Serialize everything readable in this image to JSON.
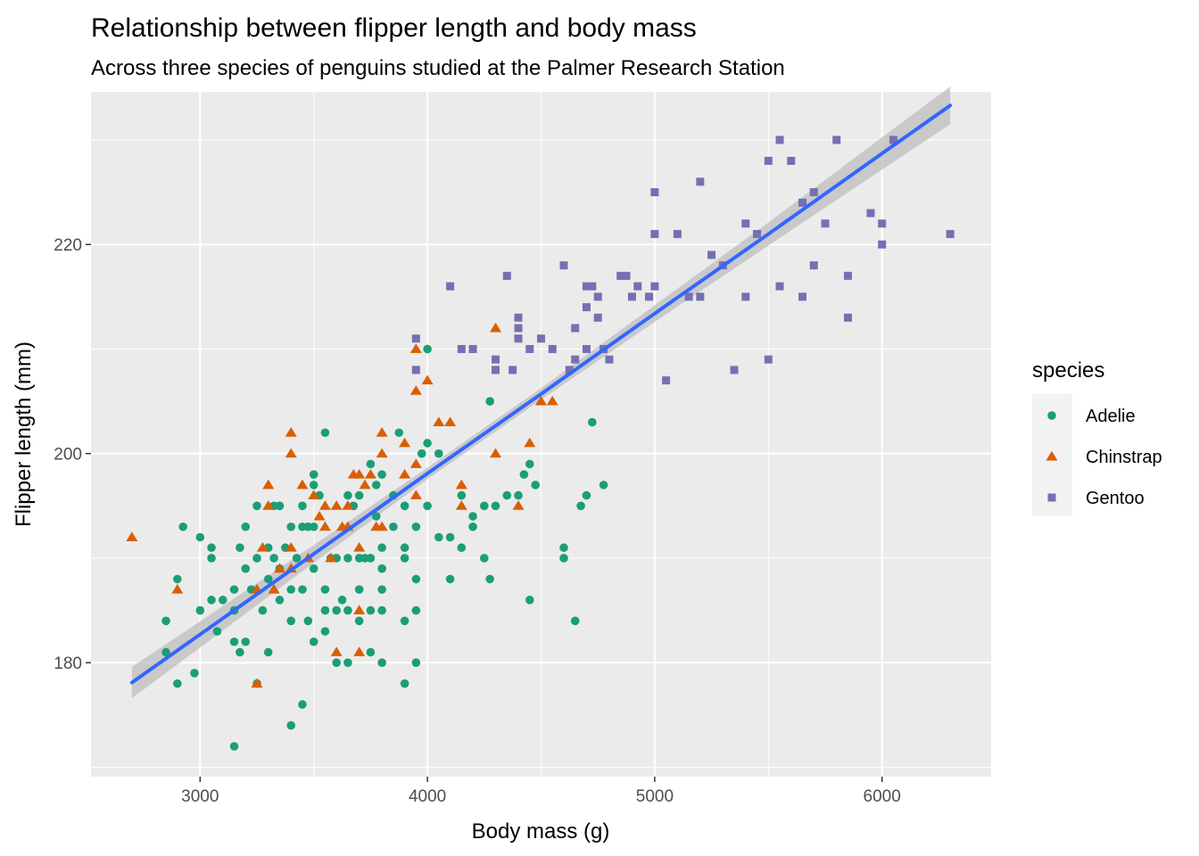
{
  "chart_data": {
    "type": "scatter",
    "title": "Relationship between flipper length and body mass",
    "subtitle": "Across three species of penguins studied at the Palmer Research Station",
    "xlabel": "Body mass (g)",
    "ylabel": "Flipper length (mm)",
    "xlim": [
      2520,
      6480
    ],
    "ylim": [
      169.1,
      234.6
    ],
    "x_ticks": [
      3000,
      4000,
      5000,
      6000
    ],
    "x_tick_labels": [
      "3000",
      "4000",
      "5000",
      "6000"
    ],
    "y_ticks": [
      180,
      200,
      220
    ],
    "y_tick_labels": [
      "180",
      "200",
      "220"
    ],
    "grid": true,
    "legend": {
      "title": "species",
      "position": "right",
      "entries": [
        {
          "label": "Adelie",
          "shape": "circle",
          "color": "#1b9e77"
        },
        {
          "label": "Chinstrap",
          "shape": "triangle",
          "color": "#d95f02"
        },
        {
          "label": "Gentoo",
          "shape": "square",
          "color": "#7570b3"
        }
      ]
    },
    "colors": {
      "panel": "#ebebeb",
      "grid": "#ffffff",
      "trend": "#3366ff",
      "ribbon": "#bdbdbd"
    },
    "trend_line": {
      "method": "lm",
      "x": [
        2700,
        3000,
        3500,
        4000,
        4500,
        5000,
        5500,
        6000,
        6300
      ],
      "y": [
        178.1,
        182.7,
        190.4,
        198.1,
        205.7,
        213.4,
        221.0,
        228.7,
        233.3
      ],
      "ci_half_width": [
        1.5,
        1.25,
        0.85,
        0.55,
        0.55,
        0.8,
        1.1,
        1.55,
        1.8
      ]
    },
    "series": [
      {
        "name": "Adelie",
        "points": [
          [
            2850,
            184
          ],
          [
            2850,
            181
          ],
          [
            2900,
            188
          ],
          [
            2900,
            178
          ],
          [
            2925,
            193
          ],
          [
            2975,
            179
          ],
          [
            3000,
            192
          ],
          [
            3000,
            185
          ],
          [
            3050,
            191
          ],
          [
            3050,
            190
          ],
          [
            3050,
            186
          ],
          [
            3075,
            183
          ],
          [
            3100,
            186
          ],
          [
            3150,
            187
          ],
          [
            3150,
            185
          ],
          [
            3150,
            182
          ],
          [
            3150,
            172
          ],
          [
            3175,
            191
          ],
          [
            3175,
            181
          ],
          [
            3200,
            193
          ],
          [
            3200,
            189
          ],
          [
            3200,
            182
          ],
          [
            3225,
            187
          ],
          [
            3250,
            195
          ],
          [
            3250,
            190
          ],
          [
            3250,
            178
          ],
          [
            3275,
            185
          ],
          [
            3300,
            191
          ],
          [
            3300,
            188
          ],
          [
            3300,
            181
          ],
          [
            3325,
            190
          ],
          [
            3325,
            195
          ],
          [
            3350,
            195
          ],
          [
            3350,
            189
          ],
          [
            3350,
            186
          ],
          [
            3375,
            191
          ],
          [
            3400,
            193
          ],
          [
            3400,
            187
          ],
          [
            3400,
            184
          ],
          [
            3400,
            174
          ],
          [
            3425,
            190
          ],
          [
            3450,
            195
          ],
          [
            3450,
            193
          ],
          [
            3450,
            187
          ],
          [
            3450,
            176
          ],
          [
            3475,
            193
          ],
          [
            3475,
            184
          ],
          [
            3500,
            198
          ],
          [
            3500,
            197
          ],
          [
            3500,
            193
          ],
          [
            3500,
            189
          ],
          [
            3500,
            182
          ],
          [
            3525,
            196
          ],
          [
            3550,
            202
          ],
          [
            3550,
            187
          ],
          [
            3550,
            185
          ],
          [
            3550,
            183
          ],
          [
            3575,
            190
          ],
          [
            3600,
            190
          ],
          [
            3600,
            185
          ],
          [
            3600,
            180
          ],
          [
            3625,
            186
          ],
          [
            3650,
            196
          ],
          [
            3650,
            190
          ],
          [
            3650,
            185
          ],
          [
            3650,
            180
          ],
          [
            3675,
            195
          ],
          [
            3700,
            196
          ],
          [
            3700,
            190
          ],
          [
            3700,
            187
          ],
          [
            3700,
            184
          ],
          [
            3725,
            190
          ],
          [
            3750,
            199
          ],
          [
            3750,
            190
          ],
          [
            3750,
            185
          ],
          [
            3750,
            181
          ],
          [
            3775,
            197
          ],
          [
            3775,
            194
          ],
          [
            3800,
            198
          ],
          [
            3800,
            191
          ],
          [
            3800,
            189
          ],
          [
            3800,
            187
          ],
          [
            3800,
            185
          ],
          [
            3800,
            180
          ],
          [
            3850,
            196
          ],
          [
            3850,
            193
          ],
          [
            3875,
            202
          ],
          [
            3900,
            195
          ],
          [
            3900,
            191
          ],
          [
            3900,
            190
          ],
          [
            3900,
            184
          ],
          [
            3900,
            178
          ],
          [
            3950,
            193
          ],
          [
            3950,
            188
          ],
          [
            3950,
            185
          ],
          [
            3950,
            180
          ],
          [
            3975,
            200
          ],
          [
            4000,
            210
          ],
          [
            4000,
            201
          ],
          [
            4000,
            195
          ],
          [
            4050,
            200
          ],
          [
            4050,
            192
          ],
          [
            4100,
            188
          ],
          [
            4100,
            192
          ],
          [
            4150,
            196
          ],
          [
            4150,
            191
          ],
          [
            4200,
            194
          ],
          [
            4200,
            193
          ],
          [
            4250,
            195
          ],
          [
            4250,
            190
          ],
          [
            4275,
            205
          ],
          [
            4275,
            188
          ],
          [
            4300,
            195
          ],
          [
            4350,
            196
          ],
          [
            4400,
            196
          ],
          [
            4425,
            198
          ],
          [
            4450,
            199
          ],
          [
            4450,
            186
          ],
          [
            4475,
            197
          ],
          [
            4600,
            191
          ],
          [
            4600,
            190
          ],
          [
            4650,
            184
          ],
          [
            4675,
            195
          ],
          [
            4700,
            196
          ],
          [
            4725,
            203
          ],
          [
            4775,
            197
          ]
        ]
      },
      {
        "name": "Chinstrap",
        "points": [
          [
            2700,
            192
          ],
          [
            2900,
            187
          ],
          [
            3250,
            178
          ],
          [
            3250,
            187
          ],
          [
            3275,
            191
          ],
          [
            3300,
            197
          ],
          [
            3300,
            195
          ],
          [
            3325,
            187
          ],
          [
            3350,
            189
          ],
          [
            3400,
            202
          ],
          [
            3400,
            200
          ],
          [
            3400,
            191
          ],
          [
            3400,
            189
          ],
          [
            3450,
            197
          ],
          [
            3475,
            190
          ],
          [
            3500,
            196
          ],
          [
            3525,
            194
          ],
          [
            3550,
            195
          ],
          [
            3550,
            193
          ],
          [
            3575,
            190
          ],
          [
            3600,
            195
          ],
          [
            3600,
            181
          ],
          [
            3625,
            193
          ],
          [
            3650,
            195
          ],
          [
            3650,
            193
          ],
          [
            3675,
            198
          ],
          [
            3700,
            198
          ],
          [
            3700,
            191
          ],
          [
            3700,
            181
          ],
          [
            3700,
            185
          ],
          [
            3725,
            197
          ],
          [
            3750,
            198
          ],
          [
            3775,
            193
          ],
          [
            3800,
            202
          ],
          [
            3800,
            200
          ],
          [
            3800,
            193
          ],
          [
            3900,
            198
          ],
          [
            3900,
            201
          ],
          [
            3950,
            210
          ],
          [
            3950,
            196
          ],
          [
            3950,
            199
          ],
          [
            3950,
            206
          ],
          [
            4000,
            207
          ],
          [
            4050,
            203
          ],
          [
            4100,
            203
          ],
          [
            4150,
            197
          ],
          [
            4150,
            195
          ],
          [
            4300,
            200
          ],
          [
            4300,
            212
          ],
          [
            4400,
            195
          ],
          [
            4450,
            201
          ],
          [
            4500,
            205
          ],
          [
            4550,
            205
          ]
        ]
      },
      {
        "name": "Gentoo",
        "points": [
          [
            3950,
            208
          ],
          [
            3950,
            211
          ],
          [
            4100,
            216
          ],
          [
            4150,
            210
          ],
          [
            4200,
            210
          ],
          [
            4300,
            208
          ],
          [
            4300,
            209
          ],
          [
            4350,
            217
          ],
          [
            4375,
            208
          ],
          [
            4400,
            213
          ],
          [
            4400,
            212
          ],
          [
            4400,
            211
          ],
          [
            4450,
            210
          ],
          [
            4500,
            211
          ],
          [
            4550,
            210
          ],
          [
            4600,
            218
          ],
          [
            4625,
            208
          ],
          [
            4650,
            212
          ],
          [
            4650,
            209
          ],
          [
            4700,
            216
          ],
          [
            4700,
            214
          ],
          [
            4700,
            210
          ],
          [
            4725,
            216
          ],
          [
            4750,
            215
          ],
          [
            4750,
            213
          ],
          [
            4775,
            210
          ],
          [
            4800,
            209
          ],
          [
            4850,
            217
          ],
          [
            4875,
            217
          ],
          [
            4900,
            215
          ],
          [
            4925,
            216
          ],
          [
            4975,
            215
          ],
          [
            5000,
            225
          ],
          [
            5000,
            221
          ],
          [
            5000,
            216
          ],
          [
            5050,
            207
          ],
          [
            5100,
            221
          ],
          [
            5150,
            215
          ],
          [
            5200,
            226
          ],
          [
            5200,
            215
          ],
          [
            5250,
            219
          ],
          [
            5300,
            218
          ],
          [
            5350,
            208
          ],
          [
            5400,
            222
          ],
          [
            5400,
            215
          ],
          [
            5450,
            221
          ],
          [
            5500,
            228
          ],
          [
            5500,
            209
          ],
          [
            5550,
            230
          ],
          [
            5550,
            216
          ],
          [
            5600,
            228
          ],
          [
            5650,
            224
          ],
          [
            5650,
            215
          ],
          [
            5700,
            225
          ],
          [
            5700,
            218
          ],
          [
            5750,
            222
          ],
          [
            5800,
            230
          ],
          [
            5850,
            217
          ],
          [
            5850,
            213
          ],
          [
            5950,
            223
          ],
          [
            6000,
            222
          ],
          [
            6000,
            220
          ],
          [
            6050,
            230
          ],
          [
            6300,
            221
          ]
        ]
      }
    ]
  }
}
